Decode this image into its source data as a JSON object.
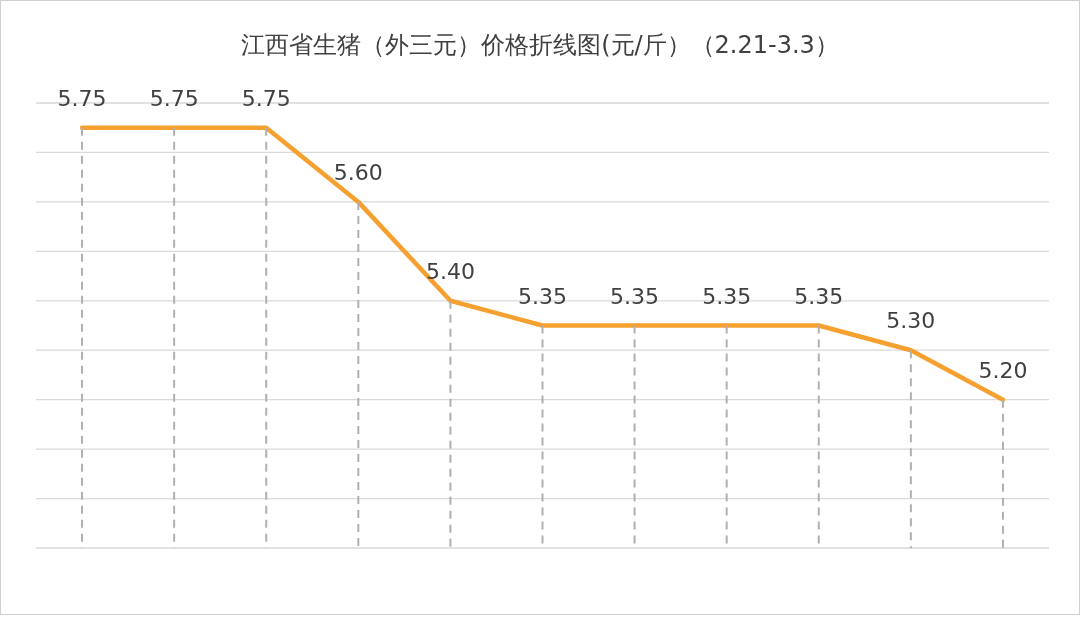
{
  "chart_data": {
    "type": "line",
    "title": "江西省生猪（外三元）价格折线图(元/斤）（2.21-3.3）",
    "categories": [
      null,
      null,
      null,
      null,
      null,
      null,
      null,
      null,
      null,
      null,
      null
    ],
    "series": [
      {
        "color": "#f6a030",
        "values": [
          5.75,
          5.75,
          5.75,
          5.6,
          5.4,
          5.35,
          5.35,
          5.35,
          5.35,
          5.3,
          5.2
        ],
        "value_labels": [
          "5.75",
          "5.75",
          "5.75",
          "5.60",
          "5.40",
          "5.35",
          "5.35",
          "5.35",
          "5.35",
          "5.30",
          "5.20"
        ]
      }
    ],
    "ylim": [
      4.9,
      5.8
    ],
    "grid": true,
    "tick_labels": false,
    "marker": "none",
    "line_style": "solid"
  }
}
